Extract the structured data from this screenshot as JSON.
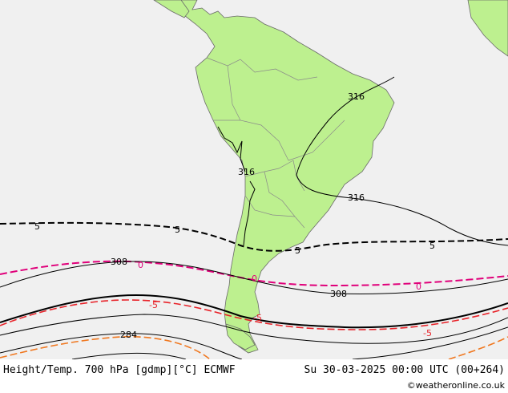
{
  "footer": {
    "title": "Height/Temp. 700 hPa [gdmp][°C] ECMWF",
    "valid_time": "Su 30-03-2025 00:00 UTC (00+264)",
    "credit": "©weatheronline.co.uk"
  },
  "colors": {
    "ocean": "#f0f0f0",
    "land": "#bdf08f",
    "border": "#8a8a8a",
    "height_contour": "#000000",
    "temp_minus5": "#e8232a",
    "temp_0": "#e0007a",
    "temp_plus5": "#000000",
    "temp_minus10": "#f07820"
  },
  "labels": {
    "h316_ne": "316",
    "h316_andes": "316",
    "h316_se": "316",
    "h308_w": "308",
    "h308_e": "308",
    "h284": "284",
    "t5_w": "5",
    "t5_mid": "5",
    "t5_mid2": "5",
    "t5_e": "5",
    "t0_w": "0",
    "t0_mid": "0",
    "t0_e": "0",
    "tm5_w": "-5",
    "tm5_mid": "-5",
    "tm5_e": "-5"
  }
}
